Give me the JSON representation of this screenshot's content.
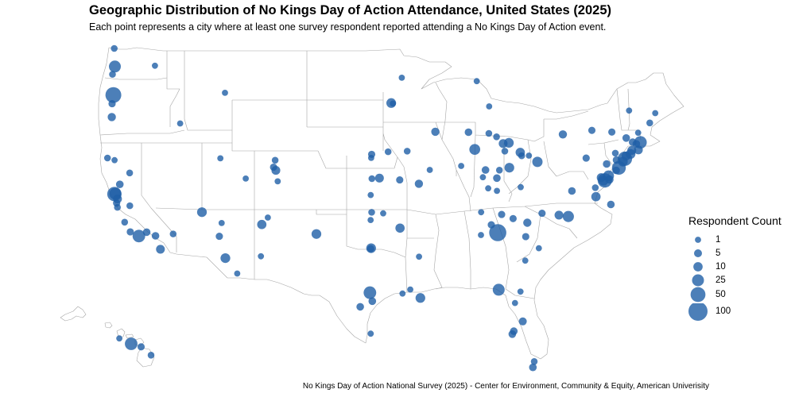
{
  "title": "Geographic Distribution of No Kings Day of Action Attendance, United States (2025)",
  "subtitle": "Each point represents a city where at least one survey respondent reported attending a No Kings Day of Action event.",
  "caption": "No Kings Day of Action National Survey (2025) - Center for Environment, Community & Equity, American Univerisity",
  "colors": {
    "point": "#1f5fa6",
    "border": "#a6a6a6",
    "land": "#ffffff"
  },
  "legend": {
    "title": "Respondent Count",
    "entries": [
      {
        "label": "1",
        "value": 1
      },
      {
        "label": "5",
        "value": 5
      },
      {
        "label": "10",
        "value": 10
      },
      {
        "label": "25",
        "value": 25
      },
      {
        "label": "50",
        "value": 50
      },
      {
        "label": "100",
        "value": 100
      }
    ]
  },
  "points": [
    {
      "lon": -122.33,
      "lat": 47.61,
      "count": 25
    },
    {
      "lon": -122.68,
      "lat": 45.52,
      "count": 60
    },
    {
      "lon": -123.0,
      "lat": 44.94,
      "count": 3
    },
    {
      "lon": -123.09,
      "lat": 44.05,
      "count": 6
    },
    {
      "lon": -122.9,
      "lat": 47.04,
      "count": 2
    },
    {
      "lon": -122.47,
      "lat": 48.75,
      "count": 2
    },
    {
      "lon": -117.43,
      "lat": 47.66,
      "count": 1
    },
    {
      "lon": -116.2,
      "lat": 43.62,
      "count": 1
    },
    {
      "lon": -124.16,
      "lat": 40.8,
      "count": 2
    },
    {
      "lon": -122.39,
      "lat": 40.59,
      "count": 1
    },
    {
      "lon": -121.49,
      "lat": 38.58,
      "count": 4
    },
    {
      "lon": -122.42,
      "lat": 37.77,
      "count": 45
    },
    {
      "lon": -122.27,
      "lat": 37.8,
      "count": 25
    },
    {
      "lon": -121.89,
      "lat": 37.34,
      "count": 8
    },
    {
      "lon": -122.03,
      "lat": 36.97,
      "count": 3
    },
    {
      "lon": -121.9,
      "lat": 36.6,
      "count": 2
    },
    {
      "lon": -119.79,
      "lat": 36.74,
      "count": 2
    },
    {
      "lon": -118.24,
      "lat": 34.05,
      "count": 30
    },
    {
      "lon": -117.16,
      "lat": 32.72,
      "count": 8
    },
    {
      "lon": -117.83,
      "lat": 33.68,
      "count": 4
    },
    {
      "lon": -117.4,
      "lat": 33.95,
      "count": 4
    },
    {
      "lon": -116.54,
      "lat": 33.83,
      "count": 2
    },
    {
      "lon": -119.7,
      "lat": 34.42,
      "count": 3
    },
    {
      "lon": -120.66,
      "lat": 35.28,
      "count": 2
    },
    {
      "lon": -115.14,
      "lat": 36.17,
      "count": 12
    },
    {
      "lon": -119.81,
      "lat": 39.53,
      "count": 2
    },
    {
      "lon": -111.89,
      "lat": 40.76,
      "count": 1
    },
    {
      "lon": -112.07,
      "lat": 33.45,
      "count": 3
    },
    {
      "lon": -110.97,
      "lat": 32.22,
      "count": 12
    },
    {
      "lon": -111.65,
      "lat": 35.2,
      "count": 1
    },
    {
      "lon": -109.55,
      "lat": 31.35,
      "count": 1
    },
    {
      "lon": -104.99,
      "lat": 39.74,
      "count": 8
    },
    {
      "lon": -105.27,
      "lat": 40.01,
      "count": 3
    },
    {
      "lon": -105.08,
      "lat": 40.58,
      "count": 2
    },
    {
      "lon": -104.82,
      "lat": 38.83,
      "count": 1
    },
    {
      "lon": -108.55,
      "lat": 39.06,
      "count": 1
    },
    {
      "lon": -111.04,
      "lat": 45.68,
      "count": 1
    },
    {
      "lon": -106.65,
      "lat": 35.08,
      "count": 10
    },
    {
      "lon": -105.94,
      "lat": 35.69,
      "count": 1
    },
    {
      "lon": -106.76,
      "lat": 32.32,
      "count": 1
    },
    {
      "lon": -97.74,
      "lat": 30.27,
      "count": 30
    },
    {
      "lon": -98.49,
      "lat": 29.42,
      "count": 4
    },
    {
      "lon": -95.37,
      "lat": 29.76,
      "count": 4
    },
    {
      "lon": -96.8,
      "lat": 32.78,
      "count": 12
    },
    {
      "lon": -97.33,
      "lat": 32.75,
      "count": 3
    },
    {
      "lon": -101.85,
      "lat": 33.58,
      "count": 12
    },
    {
      "lon": -97.4,
      "lat": 27.8,
      "count": 1
    },
    {
      "lon": -97.52,
      "lat": 35.47,
      "count": 1
    },
    {
      "lon": -95.99,
      "lat": 36.15,
      "count": 2
    },
    {
      "lon": -96.7,
      "lat": 40.81,
      "count": 1
    },
    {
      "lon": -95.94,
      "lat": 41.26,
      "count": 3
    },
    {
      "lon": -97.33,
      "lat": 37.69,
      "count": 1
    },
    {
      "lon": -95.68,
      "lat": 39.05,
      "count": 2
    },
    {
      "lon": -94.58,
      "lat": 39.1,
      "count": 8
    },
    {
      "lon": -93.09,
      "lat": 44.95,
      "count": 1
    },
    {
      "lon": -93.27,
      "lat": 44.98,
      "count": 12
    },
    {
      "lon": -91.5,
      "lat": 41.66,
      "count": 2
    },
    {
      "lon": -93.62,
      "lat": 41.59,
      "count": 2
    },
    {
      "lon": -90.2,
      "lat": 38.63,
      "count": 6
    },
    {
      "lon": -92.33,
      "lat": 38.95,
      "count": 3
    },
    {
      "lon": -89.4,
      "lat": 43.07,
      "count": 6
    },
    {
      "lon": -87.91,
      "lat": 43.04,
      "count": 4
    },
    {
      "lon": -87.63,
      "lat": 41.88,
      "count": 18
    },
    {
      "lon": -88.24,
      "lat": 40.11,
      "count": 1
    },
    {
      "lon": -89.65,
      "lat": 39.78,
      "count": 1
    },
    {
      "lon": -92.29,
      "lat": 34.75,
      "count": 10
    },
    {
      "lon": -94.16,
      "lat": 36.06,
      "count": 1
    },
    {
      "lon": -90.18,
      "lat": 32.3,
      "count": 1
    },
    {
      "lon": -92.02,
      "lat": 30.22,
      "count": 1
    },
    {
      "lon": -91.15,
      "lat": 30.45,
      "count": 1
    },
    {
      "lon": -90.07,
      "lat": 29.95,
      "count": 12
    },
    {
      "lon": -86.78,
      "lat": 36.16,
      "count": 1
    },
    {
      "lon": -84.39,
      "lat": 33.75,
      "count": 75
    },
    {
      "lon": -86.8,
      "lat": 33.52,
      "count": 1
    },
    {
      "lon": -85.31,
      "lat": 35.05,
      "count": 3
    },
    {
      "lon": -83.92,
      "lat": 35.96,
      "count": 3
    },
    {
      "lon": -82.55,
      "lat": 35.6,
      "count": 3
    },
    {
      "lon": -81.38,
      "lat": 28.54,
      "count": 5
    },
    {
      "lon": -81.66,
      "lat": 30.33,
      "count": 1
    },
    {
      "lon": -82.46,
      "lat": 27.95,
      "count": 4
    },
    {
      "lon": -82.64,
      "lat": 27.77,
      "count": 4
    },
    {
      "lon": -80.19,
      "lat": 25.76,
      "count": 4
    },
    {
      "lon": -80.13,
      "lat": 26.12,
      "count": 2
    },
    {
      "lon": -84.28,
      "lat": 30.44,
      "count": 25
    },
    {
      "lon": -82.32,
      "lat": 29.65,
      "count": 1
    },
    {
      "lon": -81.09,
      "lat": 32.08,
      "count": 1
    },
    {
      "lon": -81.03,
      "lat": 34.0,
      "count": 3
    },
    {
      "lon": -79.93,
      "lat": 32.78,
      "count": 1
    },
    {
      "lon": -80.84,
      "lat": 35.23,
      "count": 6
    },
    {
      "lon": -78.64,
      "lat": 35.78,
      "count": 20
    },
    {
      "lon": -79.05,
      "lat": 35.91,
      "count": 8
    },
    {
      "lon": -79.79,
      "lat": 36.07,
      "count": 3
    },
    {
      "lon": -77.43,
      "lat": 37.54,
      "count": 10
    },
    {
      "lon": -76.29,
      "lat": 36.85,
      "count": 4
    },
    {
      "lon": -78.48,
      "lat": 38.03,
      "count": 4
    },
    {
      "lon": -77.46,
      "lat": 38.3,
      "count": 2
    },
    {
      "lon": -77.04,
      "lat": 38.91,
      "count": 45
    },
    {
      "lon": -77.1,
      "lat": 38.88,
      "count": 12
    },
    {
      "lon": -76.61,
      "lat": 39.29,
      "count": 18
    },
    {
      "lon": -76.49,
      "lat": 38.98,
      "count": 6
    },
    {
      "lon": -77.2,
      "lat": 39.14,
      "count": 8
    },
    {
      "lon": -75.55,
      "lat": 39.74,
      "count": 4
    },
    {
      "lon": -75.16,
      "lat": 39.95,
      "count": 40
    },
    {
      "lon": -74.41,
      "lat": 40.47,
      "count": 12
    },
    {
      "lon": -74.0,
      "lat": 40.71,
      "count": 45
    },
    {
      "lon": -73.79,
      "lat": 41.05,
      "count": 8
    },
    {
      "lon": -73.76,
      "lat": 42.65,
      "count": 4
    },
    {
      "lon": -72.92,
      "lat": 41.31,
      "count": 12
    },
    {
      "lon": -72.68,
      "lat": 41.76,
      "count": 8
    },
    {
      "lon": -71.41,
      "lat": 41.82,
      "count": 8
    },
    {
      "lon": -71.06,
      "lat": 42.36,
      "count": 30
    },
    {
      "lon": -71.8,
      "lat": 42.26,
      "count": 4
    },
    {
      "lon": -72.52,
      "lat": 42.37,
      "count": 4
    },
    {
      "lon": -71.46,
      "lat": 43.0,
      "count": 1
    },
    {
      "lon": -70.25,
      "lat": 43.66,
      "count": 2
    },
    {
      "lon": -69.78,
      "lat": 44.31,
      "count": 1
    },
    {
      "lon": -73.21,
      "lat": 44.48,
      "count": 1
    },
    {
      "lon": -76.15,
      "lat": 43.05,
      "count": 3
    },
    {
      "lon": -77.61,
      "lat": 43.16,
      "count": 3
    },
    {
      "lon": -78.88,
      "lat": 42.89,
      "count": 6
    },
    {
      "lon": -79.99,
      "lat": 40.44,
      "count": 15
    },
    {
      "lon": -77.86,
      "lat": 40.79,
      "count": 3
    },
    {
      "lon": -76.88,
      "lat": 40.27,
      "count": 4
    },
    {
      "lon": -75.49,
      "lat": 40.6,
      "count": 4
    },
    {
      "lon": -75.66,
      "lat": 41.41,
      "count": 2
    },
    {
      "lon": -81.69,
      "lat": 41.5,
      "count": 10
    },
    {
      "lon": -83.0,
      "lat": 39.96,
      "count": 12
    },
    {
      "lon": -84.51,
      "lat": 39.1,
      "count": 4
    },
    {
      "lon": -84.19,
      "lat": 39.76,
      "count": 2
    },
    {
      "lon": -83.54,
      "lat": 41.66,
      "count": 2
    },
    {
      "lon": -81.52,
      "lat": 41.08,
      "count": 2
    },
    {
      "lon": -80.65,
      "lat": 41.1,
      "count": 1
    },
    {
      "lon": -83.05,
      "lat": 42.33,
      "count": 12
    },
    {
      "lon": -83.74,
      "lat": 42.28,
      "count": 8
    },
    {
      "lon": -84.56,
      "lat": 42.73,
      "count": 2
    },
    {
      "lon": -85.67,
      "lat": 42.96,
      "count": 2
    },
    {
      "lon": -86.15,
      "lat": 39.77,
      "count": 4
    },
    {
      "lon": -86.53,
      "lat": 39.17,
      "count": 1
    },
    {
      "lon": -85.76,
      "lat": 38.25,
      "count": 1
    },
    {
      "lon": -84.5,
      "lat": 38.04,
      "count": 1
    },
    {
      "lon": -81.63,
      "lat": 38.35,
      "count": 1
    },
    {
      "lon": -85.62,
      "lat": 44.76,
      "count": 1
    },
    {
      "lon": -87.4,
      "lat": 46.54,
      "count": 1
    },
    {
      "lon": -92.1,
      "lat": 46.79,
      "count": 1
    },
    {
      "lon": -157.86,
      "lat": 21.31,
      "count": 30
    },
    {
      "lon": -156.47,
      "lat": 20.89,
      "count": 3
    },
    {
      "lon": -155.08,
      "lat": 19.72,
      "count": 2
    },
    {
      "lon": -159.52,
      "lat": 22.07,
      "count": 1
    }
  ]
}
